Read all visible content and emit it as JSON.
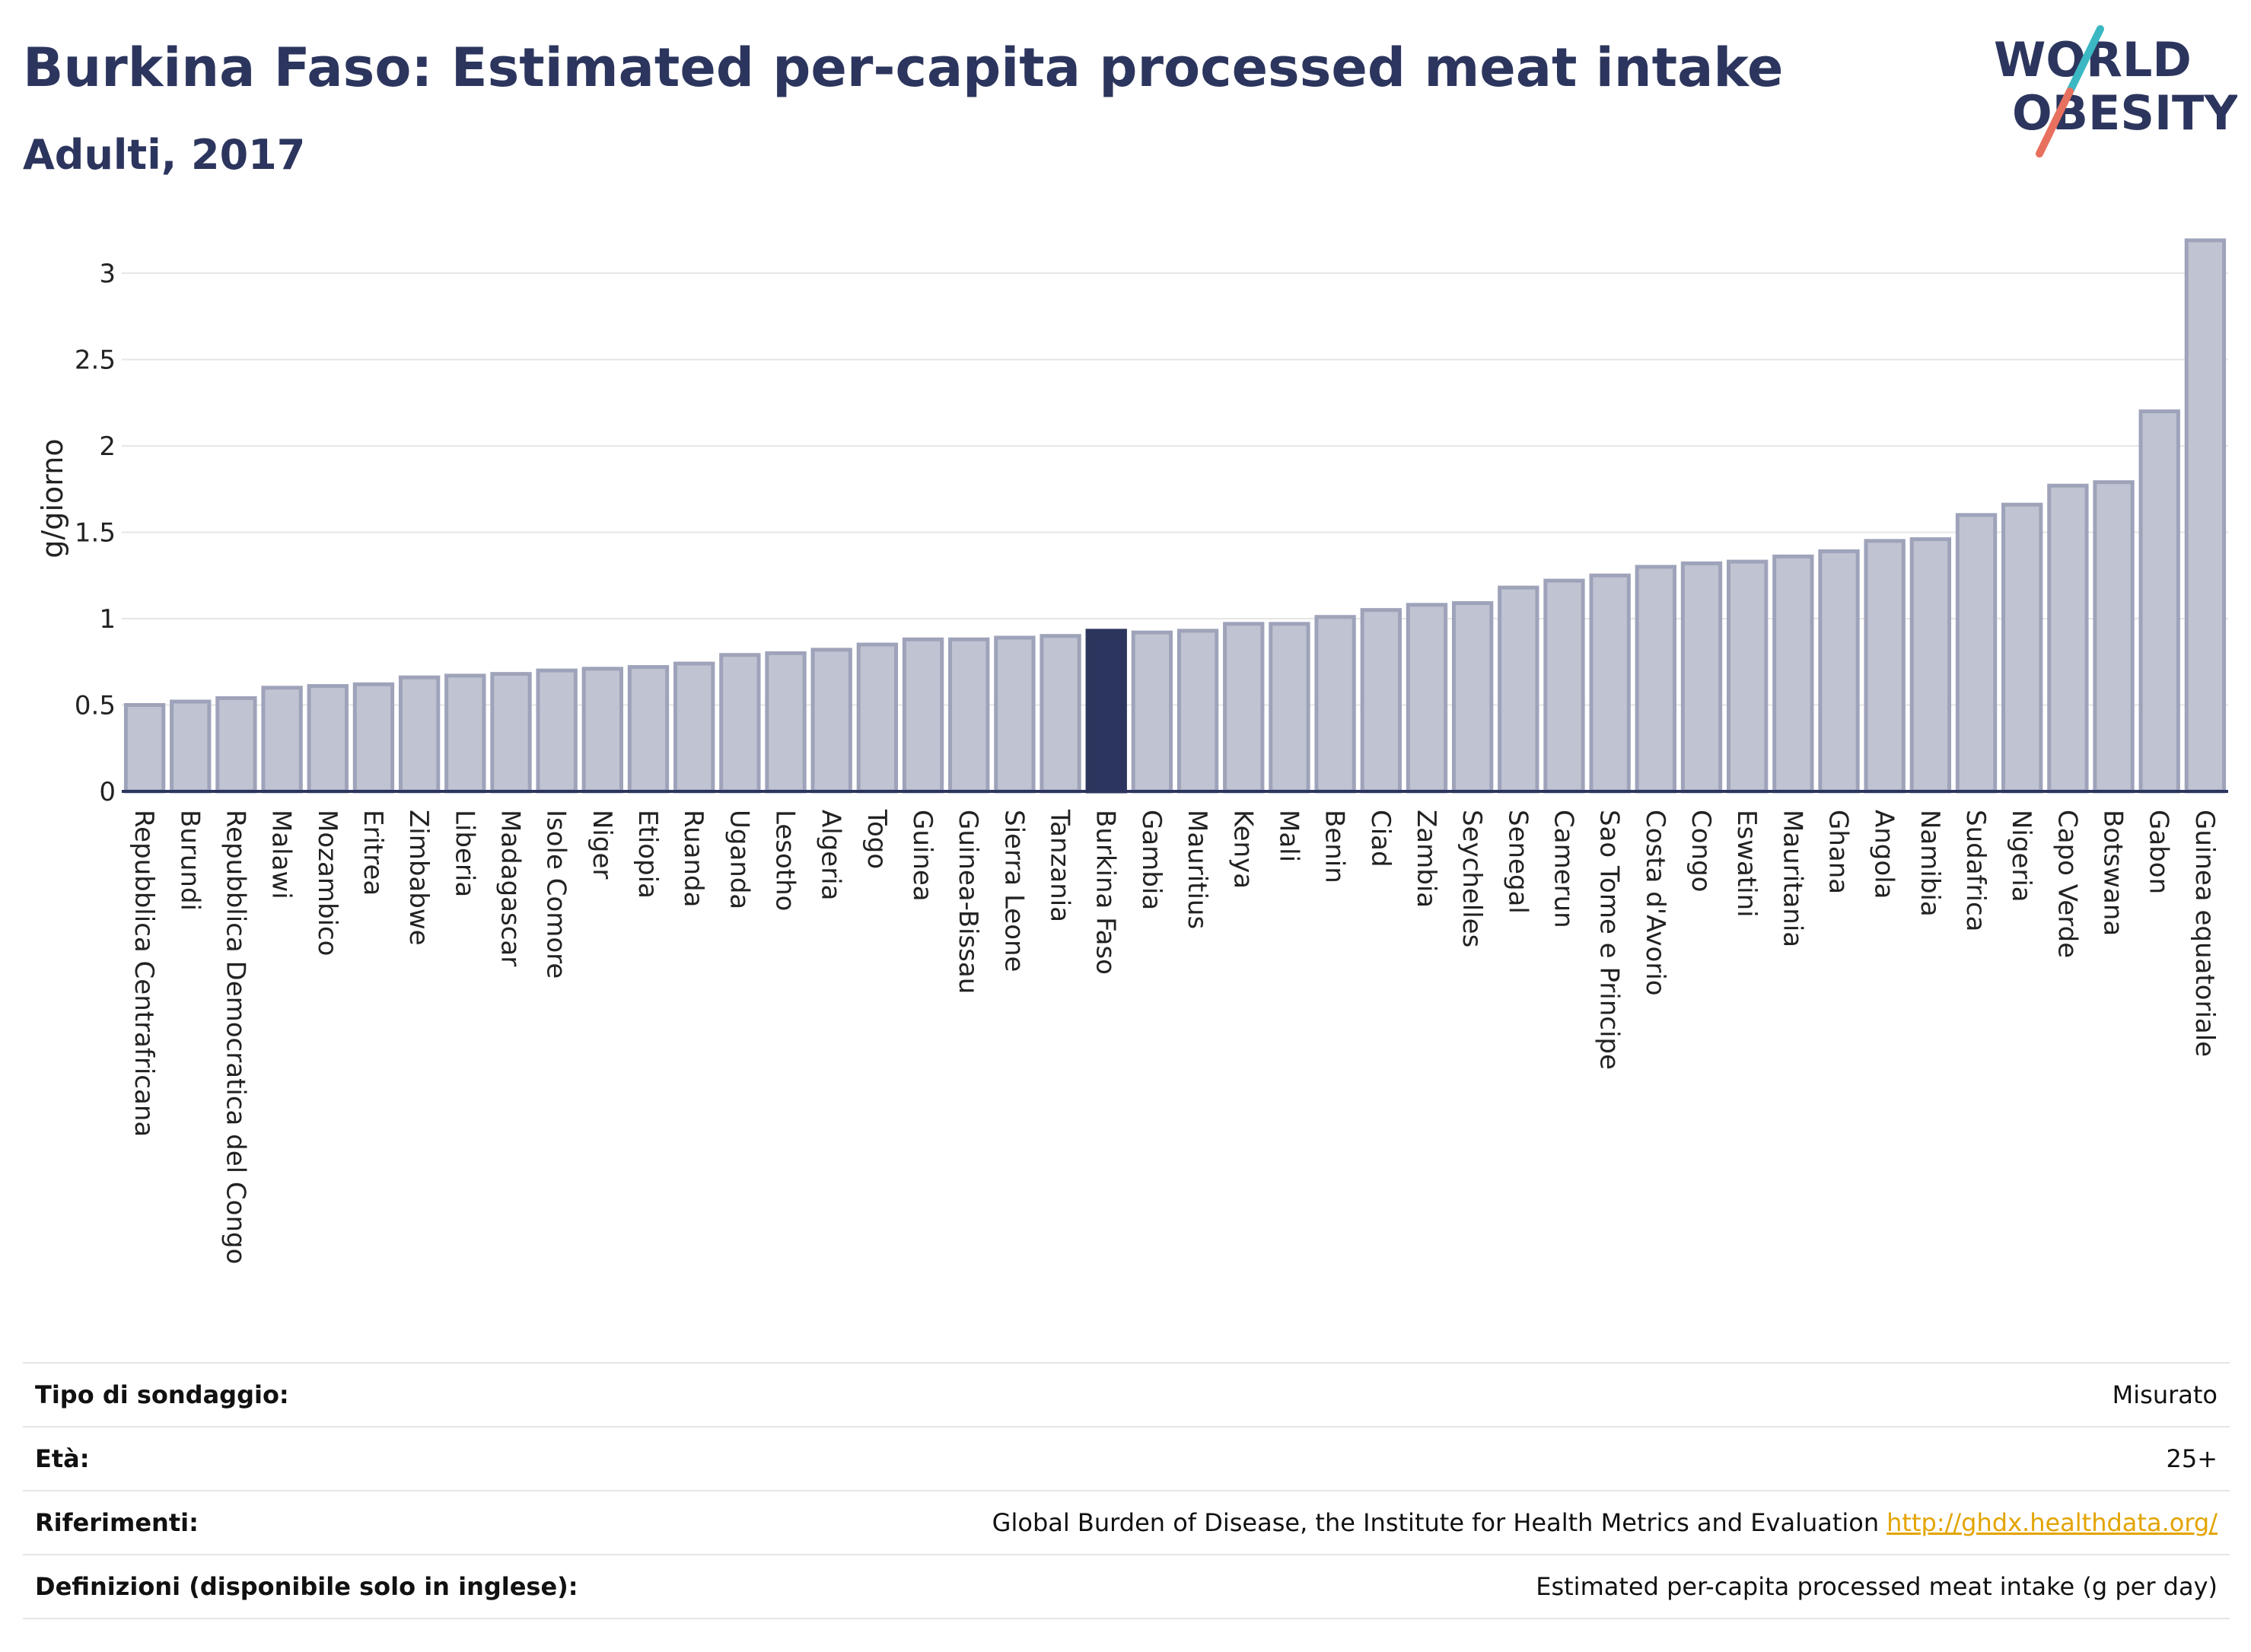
{
  "header": {
    "title": "Burkina Faso: Estimated per-capita processed meat intake",
    "subtitle": "Adulti, 2017"
  },
  "logo": {
    "line1": "WORLD",
    "line2": "OBESITY",
    "accent_teal": "#3bb8c3",
    "accent_red": "#e8705f"
  },
  "colors": {
    "bar": "#c0c3d1",
    "bar_stroke": "#9ea3ba",
    "highlight": "#2c355d",
    "axis": "#2c355d"
  },
  "chart_data": {
    "type": "bar",
    "title": "Burkina Faso: Estimated per-capita processed meat intake",
    "subtitle": "Adulti, 2017",
    "ylabel": "g/giorno",
    "xlabel": "",
    "ylim": [
      0,
      3.3
    ],
    "yticks": [
      0,
      0.5,
      1,
      1.5,
      2,
      2.5,
      3
    ],
    "ytick_labels": [
      "0",
      "0.5",
      "1",
      "1.5",
      "2",
      "2.5",
      "3"
    ],
    "grid": true,
    "highlight": "Burkina Faso",
    "categories": [
      "Repubblica Centrafricana",
      "Burundi",
      "Repubblica Democratica del Congo",
      "Malawi",
      "Mozambico",
      "Eritrea",
      "Zimbabwe",
      "Liberia",
      "Madagascar",
      "Isole Comore",
      "Niger",
      "Etiopia",
      "Ruanda",
      "Uganda",
      "Lesotho",
      "Algeria",
      "Togo",
      "Guinea",
      "Guinea-Bissau",
      "Sierra Leone",
      "Tanzania",
      "Burkina Faso",
      "Gambia",
      "Mauritius",
      "Kenya",
      "Mali",
      "Benin",
      "Ciad",
      "Zambia",
      "Seychelles",
      "Senegal",
      "Camerun",
      "Sao Tome e Principe",
      "Costa d'Avorio",
      "Congo",
      "Eswatini",
      "Mauritania",
      "Ghana",
      "Angola",
      "Namibia",
      "Sudafrica",
      "Nigeria",
      "Capo Verde",
      "Botswana",
      "Gabon",
      "Guinea equatoriale"
    ],
    "values": [
      0.5,
      0.52,
      0.54,
      0.6,
      0.61,
      0.62,
      0.66,
      0.67,
      0.68,
      0.7,
      0.71,
      0.72,
      0.74,
      0.79,
      0.8,
      0.82,
      0.85,
      0.88,
      0.88,
      0.89,
      0.9,
      0.93,
      0.92,
      0.93,
      0.97,
      0.97,
      1.01,
      1.05,
      1.08,
      1.09,
      1.18,
      1.22,
      1.25,
      1.3,
      1.32,
      1.33,
      1.36,
      1.39,
      1.45,
      1.46,
      1.6,
      1.66,
      1.77,
      1.79,
      2.2,
      3.19
    ]
  },
  "info": {
    "rows": [
      {
        "key": "Tipo di sondaggio:",
        "value": "Misurato",
        "link": ""
      },
      {
        "key": "Età:",
        "value": "25+",
        "link": ""
      },
      {
        "key": "Riferimenti:",
        "value": "Global Burden of Disease, the Institute for Health Metrics and Evaluation",
        "link": "http://ghdx.healthdata.org/"
      },
      {
        "key": "Definizioni (disponibile solo in inglese):",
        "value": "Estimated per-capita processed meat intake (g per day)",
        "link": ""
      }
    ]
  }
}
